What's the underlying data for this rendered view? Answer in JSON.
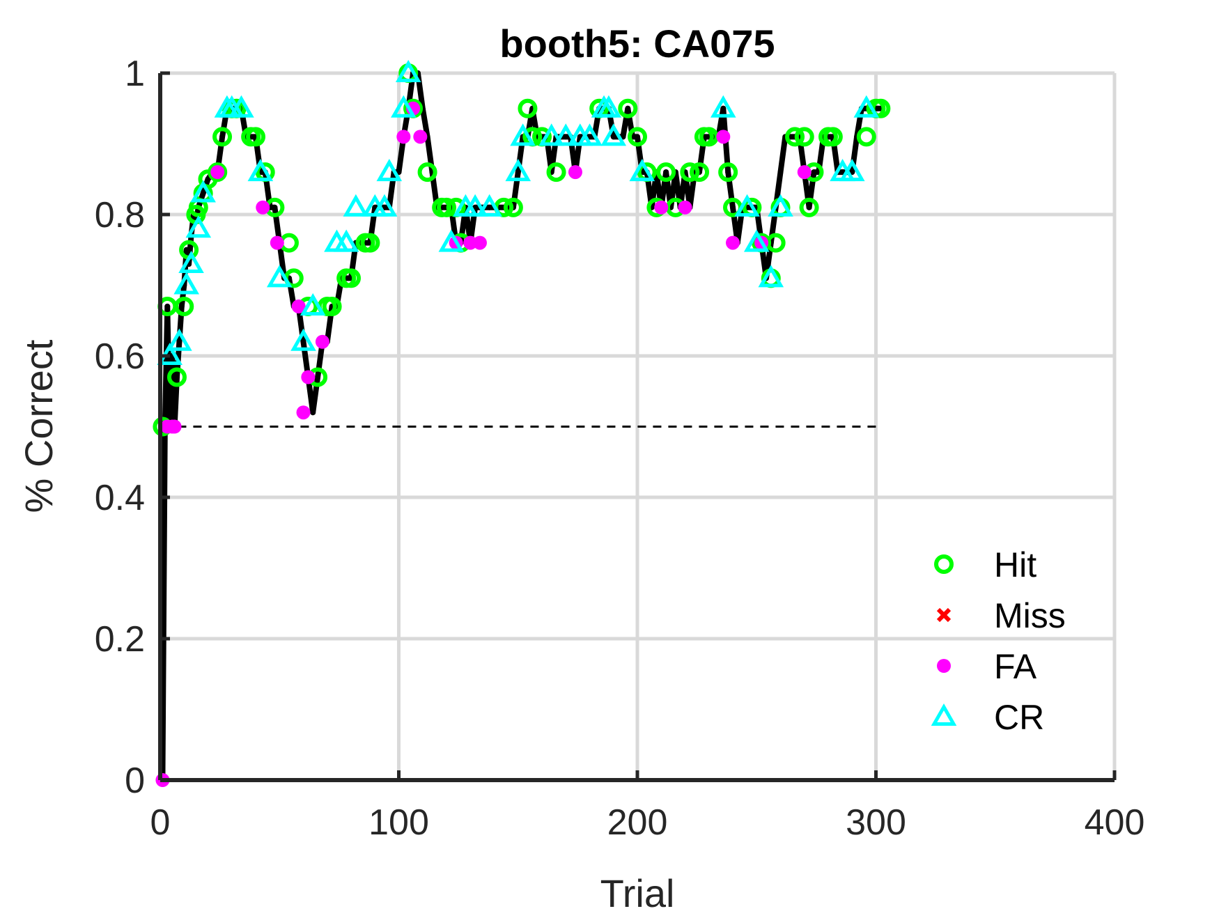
{
  "chart_data": {
    "type": "scatter",
    "title": "booth5: CA075",
    "xlabel": "Trial",
    "ylabel": "% Correct",
    "xlim": [
      0,
      400
    ],
    "ylim": [
      0,
      1
    ],
    "xticks": [
      0,
      100,
      200,
      300,
      400
    ],
    "yticks": [
      0,
      0.2,
      0.4,
      0.6,
      0.8,
      1
    ],
    "xtick_labels": [
      "0",
      "100",
      "200",
      "300",
      "400"
    ],
    "ytick_labels": [
      "0",
      "0.2",
      "0.4",
      "0.6",
      "0.8",
      "1"
    ],
    "grid": true,
    "legend_position": "bottom-right",
    "chance_line": {
      "y": 0.5,
      "x_range": [
        1,
        300
      ],
      "style": "dashed"
    },
    "performance_line": {
      "color": "#000000",
      "x": [
        1,
        2,
        3,
        4,
        5,
        6,
        7,
        8,
        9,
        10,
        11,
        12,
        13,
        14,
        15,
        16,
        17,
        18,
        19,
        20,
        22,
        24,
        26,
        28,
        30,
        32,
        34,
        36,
        38,
        40,
        42,
        44,
        46,
        48,
        50,
        52,
        54,
        56,
        58,
        60,
        62,
        64,
        66,
        68,
        70,
        72,
        74,
        76,
        78,
        80,
        82,
        84,
        86,
        88,
        90,
        92,
        94,
        96,
        98,
        100,
        102,
        104,
        106,
        108,
        110,
        112,
        114,
        116,
        118,
        120,
        122,
        124,
        126,
        128,
        130,
        132,
        134,
        136,
        138,
        140,
        142,
        144,
        146,
        148,
        150,
        152,
        154,
        156,
        158,
        160,
        162,
        164,
        166,
        168,
        170,
        172,
        174,
        176,
        178,
        180,
        182,
        184,
        186,
        188,
        190,
        192,
        194,
        196,
        198,
        200,
        202,
        204,
        206,
        208,
        210,
        212,
        214,
        216,
        218,
        220,
        222,
        224,
        226,
        228,
        230,
        232,
        234,
        236,
        238,
        240,
        242,
        244,
        246,
        248,
        250,
        252,
        254,
        256,
        258,
        260,
        262,
        264,
        266,
        268,
        270,
        272,
        274,
        276,
        278,
        280,
        282,
        284,
        286,
        288,
        290,
        292,
        294,
        296,
        298,
        300,
        302
      ],
      "y": [
        0,
        0.5,
        0.67,
        0.5,
        0.6,
        0.5,
        0.57,
        0.62,
        0.67,
        0.7,
        0.75,
        0.73,
        0.77,
        0.8,
        0.79,
        0.81,
        0.82,
        0.83,
        0.84,
        0.85,
        0.86,
        0.86,
        0.91,
        0.95,
        0.95,
        0.95,
        0.95,
        0.91,
        0.91,
        0.91,
        0.86,
        0.86,
        0.81,
        0.81,
        0.76,
        0.71,
        0.71,
        0.67,
        0.67,
        0.62,
        0.57,
        0.52,
        0.57,
        0.62,
        0.62,
        0.67,
        0.67,
        0.71,
        0.71,
        0.71,
        0.76,
        0.76,
        0.76,
        0.76,
        0.81,
        0.81,
        0.81,
        0.81,
        0.86,
        0.86,
        0.91,
        0.95,
        1.0,
        1.0,
        0.95,
        0.91,
        0.86,
        0.81,
        0.81,
        0.81,
        0.81,
        0.76,
        0.76,
        0.81,
        0.76,
        0.81,
        0.81,
        0.81,
        0.81,
        0.81,
        0.81,
        0.81,
        0.81,
        0.81,
        0.86,
        0.91,
        0.91,
        0.95,
        0.91,
        0.91,
        0.91,
        0.86,
        0.91,
        0.91,
        0.91,
        0.91,
        0.86,
        0.91,
        0.91,
        0.91,
        0.91,
        0.95,
        0.95,
        0.95,
        0.91,
        0.91,
        0.91,
        0.95,
        0.91,
        0.91,
        0.86,
        0.86,
        0.81,
        0.86,
        0.81,
        0.86,
        0.81,
        0.86,
        0.81,
        0.86,
        0.81,
        0.86,
        0.86,
        0.91,
        0.91,
        0.91,
        0.91,
        0.95,
        0.86,
        0.81,
        0.76,
        0.81,
        0.81,
        0.81,
        0.81,
        0.76,
        0.71,
        0.76,
        0.81,
        0.86,
        0.91,
        0.91,
        0.91,
        0.91,
        0.86,
        0.81,
        0.86,
        0.86,
        0.91,
        0.91,
        0.91,
        0.86,
        0.86,
        0.86,
        0.86,
        0.91,
        0.95,
        0.95,
        0.95,
        0.95,
        0.95
      ]
    },
    "series": [
      {
        "name": "Hit",
        "marker": "circle-open",
        "color": "#00ff00",
        "x": [
          1,
          3,
          7,
          10,
          12,
          15,
          16,
          18,
          20,
          24,
          26,
          30,
          32,
          38,
          40,
          44,
          48,
          54,
          56,
          62,
          66,
          70,
          72,
          78,
          80,
          86,
          88,
          104,
          106,
          112,
          118,
          120,
          124,
          126,
          144,
          148,
          154,
          156,
          160,
          166,
          184,
          196,
          200,
          204,
          208,
          212,
          216,
          222,
          226,
          228,
          230,
          238,
          240,
          248,
          252,
          256,
          258,
          260,
          266,
          270,
          272,
          274,
          280,
          282,
          296,
          300,
          302
        ],
        "y": [
          0.5,
          0.67,
          0.57,
          0.67,
          0.75,
          0.8,
          0.81,
          0.83,
          0.85,
          0.86,
          0.91,
          0.95,
          0.95,
          0.91,
          0.91,
          0.86,
          0.81,
          0.76,
          0.71,
          0.67,
          0.57,
          0.67,
          0.67,
          0.71,
          0.71,
          0.76,
          0.76,
          1.0,
          0.95,
          0.86,
          0.81,
          0.81,
          0.81,
          0.76,
          0.81,
          0.81,
          0.95,
          0.91,
          0.91,
          0.86,
          0.95,
          0.95,
          0.91,
          0.86,
          0.81,
          0.86,
          0.81,
          0.86,
          0.86,
          0.91,
          0.91,
          0.86,
          0.81,
          0.81,
          0.76,
          0.71,
          0.76,
          0.81,
          0.91,
          0.91,
          0.81,
          0.86,
          0.91,
          0.91,
          0.91,
          0.95,
          0.95
        ]
      },
      {
        "name": "Miss",
        "marker": "x",
        "color": "#ff0000",
        "x": [],
        "y": []
      },
      {
        "name": "FA",
        "marker": "dot",
        "color": "#ff00ff",
        "x": [
          1,
          3,
          5,
          6,
          24,
          43,
          49,
          58,
          60,
          62,
          68,
          102,
          106,
          109,
          124,
          130,
          134,
          174,
          210,
          220,
          236,
          240,
          252,
          270
        ],
        "y": [
          0,
          0.5,
          0.5,
          0.5,
          0.86,
          0.81,
          0.76,
          0.67,
          0.52,
          0.57,
          0.62,
          0.91,
          0.95,
          0.91,
          0.76,
          0.76,
          0.76,
          0.86,
          0.81,
          0.81,
          0.91,
          0.76,
          0.76,
          0.86
        ]
      },
      {
        "name": "CR",
        "marker": "triangle-open",
        "color": "#00ffff",
        "x": [
          4,
          8,
          11,
          13,
          16,
          18,
          28,
          30,
          34,
          42,
          50,
          60,
          64,
          74,
          78,
          82,
          90,
          94,
          96,
          102,
          104,
          122,
          128,
          132,
          138,
          150,
          152,
          164,
          170,
          176,
          180,
          186,
          188,
          190,
          202,
          236,
          246,
          250,
          256,
          260,
          286,
          290,
          296
        ],
        "y": [
          0.6,
          0.62,
          0.7,
          0.73,
          0.78,
          0.83,
          0.95,
          0.95,
          0.95,
          0.86,
          0.71,
          0.62,
          0.67,
          0.76,
          0.76,
          0.81,
          0.81,
          0.81,
          0.86,
          0.95,
          1.0,
          0.76,
          0.81,
          0.81,
          0.81,
          0.86,
          0.91,
          0.91,
          0.91,
          0.91,
          0.91,
          0.95,
          0.95,
          0.91,
          0.86,
          0.95,
          0.81,
          0.76,
          0.71,
          0.81,
          0.86,
          0.86,
          0.95
        ]
      }
    ],
    "colors": {
      "axis": "#262626",
      "grid": "#d9d9d9",
      "line": "#000000"
    }
  }
}
